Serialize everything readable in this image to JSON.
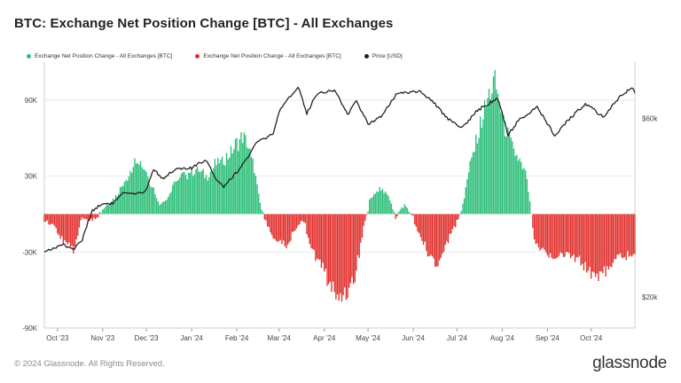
{
  "title": "BTC: Exchange Net Position Change [BTC] - All Exchanges",
  "legend": [
    {
      "label": "Exchange Net Position Change - All Exchanges [BTC]",
      "color": "#2fbf7a"
    },
    {
      "label": "Exchange Net Position Change - All Exchanges [BTC]",
      "color": "#e0322f"
    },
    {
      "label": "Price [USD]",
      "color": "#222222"
    }
  ],
  "footer": {
    "copyright": "© 2024 Glassnode. All Rights Reserved.",
    "logo": "glassnode"
  },
  "colors": {
    "positive": "#2fbf7a",
    "negative": "#e0322f",
    "price": "#222222",
    "grid": "#e9e9e9"
  },
  "chart_data": {
    "type": "bar",
    "title": "BTC: Exchange Net Position Change [BTC] - All Exchanges",
    "x_range": [
      "2023-09-22",
      "2024-10-31"
    ],
    "x_ticks": [
      "Oct '23",
      "Nov '23",
      "Dec '23",
      "Jan '24",
      "Feb '24",
      "Mar '24",
      "Apr '24",
      "May '24",
      "Jun '24",
      "Jul '24",
      "Aug '24",
      "Sep '24",
      "Oct '24"
    ],
    "y_left": {
      "ticks": [
        "90K",
        "30K",
        "-30K",
        "-90K"
      ],
      "tick_values": [
        90000,
        30000,
        -30000,
        -90000
      ],
      "ylim": [
        -90000,
        120000
      ]
    },
    "y_right": {
      "ticks": [
        "$60k",
        "$20k"
      ],
      "tick_values": [
        60000,
        20000
      ],
      "scale": "log"
    },
    "grid": true,
    "legend_position": "top-left",
    "net_position_anchors": [
      [
        "2023-09-22",
        -5000
      ],
      [
        "2023-09-28",
        -8000
      ],
      [
        "2023-10-05",
        -20000
      ],
      [
        "2023-10-12",
        -28000
      ],
      [
        "2023-10-18",
        -3000
      ],
      [
        "2023-10-25",
        -6000
      ],
      [
        "2023-11-01",
        3000
      ],
      [
        "2023-11-08",
        12000
      ],
      [
        "2023-11-15",
        22000
      ],
      [
        "2023-11-20",
        35000
      ],
      [
        "2023-11-25",
        46000
      ],
      [
        "2023-11-30",
        35000
      ],
      [
        "2023-12-05",
        22000
      ],
      [
        "2023-12-10",
        8000
      ],
      [
        "2023-12-15",
        12000
      ],
      [
        "2023-12-22",
        28000
      ],
      [
        "2023-12-30",
        33000
      ],
      [
        "2024-01-05",
        36000
      ],
      [
        "2024-01-12",
        30000
      ],
      [
        "2024-01-18",
        40000
      ],
      [
        "2024-01-25",
        45000
      ],
      [
        "2024-02-01",
        55000
      ],
      [
        "2024-02-06",
        62000
      ],
      [
        "2024-02-12",
        40000
      ],
      [
        "2024-02-16",
        15000
      ],
      [
        "2024-02-20",
        -5000
      ],
      [
        "2024-02-27",
        -20000
      ],
      [
        "2024-03-06",
        -26000
      ],
      [
        "2024-03-12",
        -12000
      ],
      [
        "2024-03-18",
        -5000
      ],
      [
        "2024-03-24",
        -30000
      ],
      [
        "2024-03-30",
        -40000
      ],
      [
        "2024-04-05",
        -55000
      ],
      [
        "2024-04-10",
        -67000
      ],
      [
        "2024-04-16",
        -62000
      ],
      [
        "2024-04-22",
        -50000
      ],
      [
        "2024-04-28",
        -10000
      ],
      [
        "2024-05-03",
        14000
      ],
      [
        "2024-05-09",
        20000
      ],
      [
        "2024-05-15",
        16000
      ],
      [
        "2024-05-20",
        -3000
      ],
      [
        "2024-05-26",
        8000
      ],
      [
        "2024-06-01",
        -3000
      ],
      [
        "2024-06-06",
        -20000
      ],
      [
        "2024-06-12",
        -32000
      ],
      [
        "2024-06-18",
        -42000
      ],
      [
        "2024-06-24",
        -22000
      ],
      [
        "2024-06-30",
        -10000
      ],
      [
        "2024-07-05",
        8000
      ],
      [
        "2024-07-10",
        38000
      ],
      [
        "2024-07-16",
        65000
      ],
      [
        "2024-07-22",
        90000
      ],
      [
        "2024-07-27",
        105000
      ],
      [
        "2024-08-02",
        72000
      ],
      [
        "2024-08-08",
        52000
      ],
      [
        "2024-08-14",
        38000
      ],
      [
        "2024-08-18",
        28000
      ],
      [
        "2024-08-23",
        -22000
      ],
      [
        "2024-08-30",
        -28000
      ],
      [
        "2024-09-05",
        -36000
      ],
      [
        "2024-09-12",
        -30000
      ],
      [
        "2024-09-18",
        -34000
      ],
      [
        "2024-09-25",
        -38000
      ],
      [
        "2024-10-01",
        -45000
      ],
      [
        "2024-10-07",
        -50000
      ],
      [
        "2024-10-14",
        -40000
      ],
      [
        "2024-10-21",
        -35000
      ],
      [
        "2024-10-31",
        -30000
      ]
    ],
    "price_anchors": [
      [
        "2023-09-22",
        26500
      ],
      [
        "2023-09-28",
        26900
      ],
      [
        "2023-10-05",
        27600
      ],
      [
        "2023-10-12",
        26800
      ],
      [
        "2023-10-18",
        28400
      ],
      [
        "2023-10-25",
        34100
      ],
      [
        "2023-11-01",
        35500
      ],
      [
        "2023-11-08",
        35600
      ],
      [
        "2023-11-15",
        37800
      ],
      [
        "2023-11-25",
        37600
      ],
      [
        "2023-12-01",
        38700
      ],
      [
        "2023-12-06",
        44000
      ],
      [
        "2023-12-12",
        41400
      ],
      [
        "2023-12-20",
        43800
      ],
      [
        "2024-01-01",
        44200
      ],
      [
        "2024-01-11",
        46600
      ],
      [
        "2024-01-18",
        41200
      ],
      [
        "2024-01-23",
        39500
      ],
      [
        "2024-02-01",
        43100
      ],
      [
        "2024-02-09",
        47500
      ],
      [
        "2024-02-15",
        51900
      ],
      [
        "2024-02-26",
        54500
      ],
      [
        "2024-03-01",
        62400
      ],
      [
        "2024-03-08",
        68200
      ],
      [
        "2024-03-14",
        73100
      ],
      [
        "2024-03-20",
        62000
      ],
      [
        "2024-03-27",
        70000
      ],
      [
        "2024-04-08",
        71600
      ],
      [
        "2024-04-17",
        61300
      ],
      [
        "2024-04-23",
        66800
      ],
      [
        "2024-05-01",
        57800
      ],
      [
        "2024-05-10",
        61000
      ],
      [
        "2024-05-21",
        70100
      ],
      [
        "2024-06-05",
        71100
      ],
      [
        "2024-06-15",
        66200
      ],
      [
        "2024-06-24",
        60300
      ],
      [
        "2024-07-05",
        56700
      ],
      [
        "2024-07-15",
        63100
      ],
      [
        "2024-07-29",
        68000
      ],
      [
        "2024-08-05",
        54000
      ],
      [
        "2024-08-12",
        59300
      ],
      [
        "2024-08-25",
        64200
      ],
      [
        "2024-09-06",
        53900
      ],
      [
        "2024-09-15",
        59200
      ],
      [
        "2024-09-27",
        65800
      ],
      [
        "2024-10-10",
        60300
      ],
      [
        "2024-10-20",
        68400
      ],
      [
        "2024-10-29",
        72700
      ],
      [
        "2024-10-31",
        70200
      ]
    ]
  }
}
